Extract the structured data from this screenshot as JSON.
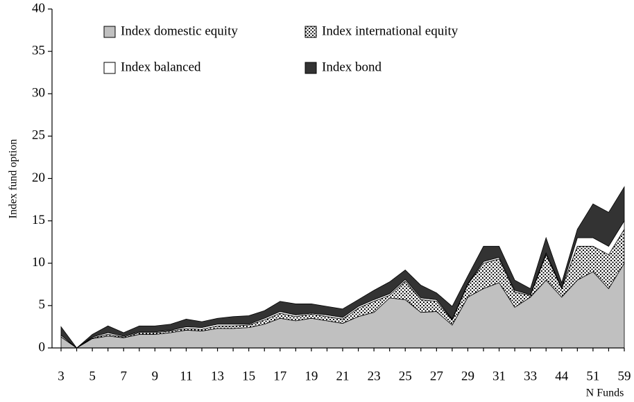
{
  "chart_data": {
    "type": "stacked_area",
    "y_label": "Index fund option",
    "x_label": "N Funds",
    "categories": [
      "3",
      null,
      "5",
      null,
      "7",
      null,
      "9",
      null,
      "11",
      null,
      "13",
      null,
      "15",
      null,
      "17",
      null,
      "19",
      null,
      "21",
      null,
      "23",
      null,
      "25",
      null,
      "27",
      null,
      "29",
      null,
      "31",
      null,
      "33",
      null,
      "44",
      null,
      "51",
      null,
      "59"
    ],
    "series": [
      {
        "name": "Index domestic equity",
        "color": "#c0c0c0",
        "values": [
          1.3,
          0,
          1.1,
          1.4,
          1.2,
          1.6,
          1.6,
          1.8,
          2.1,
          2.0,
          2.3,
          2.3,
          2.4,
          2.8,
          3.5,
          3.2,
          3.5,
          3.2,
          2.9,
          3.7,
          4.2,
          5.9,
          5.7,
          4.2,
          4.3,
          2.7,
          6.0,
          7.0,
          7.7,
          4.8,
          6.0,
          8.0,
          6.0,
          8.0,
          9.0,
          7.0,
          10.0
        ]
      },
      {
        "name": "Index international equity",
        "color": "#000000",
        "values": [
          0,
          0,
          0.1,
          0.2,
          0.1,
          0.2,
          0.2,
          0.2,
          0.2,
          0.2,
          0.3,
          0.3,
          0.3,
          0.5,
          0.6,
          0.5,
          0.5,
          0.5,
          0.5,
          1.0,
          1.3,
          0.3,
          2.2,
          1.5,
          1.2,
          0.6,
          1.5,
          3.0,
          2.8,
          1.8,
          0.2,
          3.0,
          1.0,
          4.0,
          3.0,
          4.0,
          4.0
        ]
      },
      {
        "name": "Index balanced",
        "color": "#ffffff",
        "values": [
          0.2,
          0,
          0.1,
          0.2,
          0.1,
          0.1,
          0.1,
          0.1,
          0.2,
          0.2,
          0.2,
          0.2,
          0.1,
          0.2,
          0.2,
          0.2,
          0.1,
          0.2,
          0.2,
          0.2,
          0.2,
          0.2,
          0.2,
          0.2,
          0.2,
          0.1,
          0.1,
          0.2,
          0.2,
          0.2,
          0.1,
          0.2,
          0.1,
          1.0,
          1.0,
          1.0,
          1.0
        ]
      },
      {
        "name": "Index bond",
        "color": "#333333",
        "values": [
          1.0,
          0,
          0.3,
          0.8,
          0.4,
          0.7,
          0.7,
          0.7,
          0.9,
          0.7,
          0.7,
          0.9,
          1.0,
          0.9,
          1.2,
          1.3,
          1.1,
          1.0,
          1.0,
          0.8,
          1.1,
          1.4,
          1.1,
          1.5,
          0.8,
          1.5,
          0.9,
          1.8,
          1.3,
          1.2,
          0.7,
          1.8,
          0.6,
          1.0,
          4.0,
          4.0,
          4.0
        ]
      }
    ],
    "patterns": [
      "solid",
      "dots",
      "solid",
      "solid"
    ],
    "ylim": [
      0,
      40
    ],
    "yticks": [
      0,
      5,
      10,
      15,
      20,
      25,
      30,
      35,
      40
    ]
  }
}
